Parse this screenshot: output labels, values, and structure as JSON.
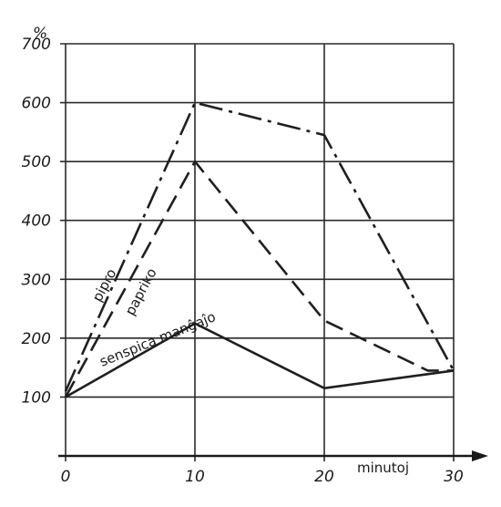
{
  "chart_data": {
    "type": "line",
    "ylabel": "%",
    "xlabel": "minutoj",
    "x_ticks": [
      0,
      10,
      20,
      30
    ],
    "y_ticks": [
      100,
      200,
      300,
      400,
      500,
      600,
      700
    ],
    "xlim": [
      0,
      30
    ],
    "ylim": [
      0,
      700
    ],
    "grid": true,
    "series": [
      {
        "name": "pipro",
        "dash": "dashdot",
        "x": [
          0,
          10,
          20,
          30
        ],
        "y": [
          110,
          600,
          545,
          145
        ]
      },
      {
        "name": "papriko",
        "dash": "dashed",
        "x": [
          0,
          10,
          20,
          28,
          30
        ],
        "y": [
          100,
          500,
          230,
          145,
          145
        ]
      },
      {
        "name": "senspica manĝaĵo",
        "dash": "solid",
        "x": [
          0,
          10,
          20,
          30
        ],
        "y": [
          100,
          225,
          115,
          145
        ]
      }
    ]
  }
}
